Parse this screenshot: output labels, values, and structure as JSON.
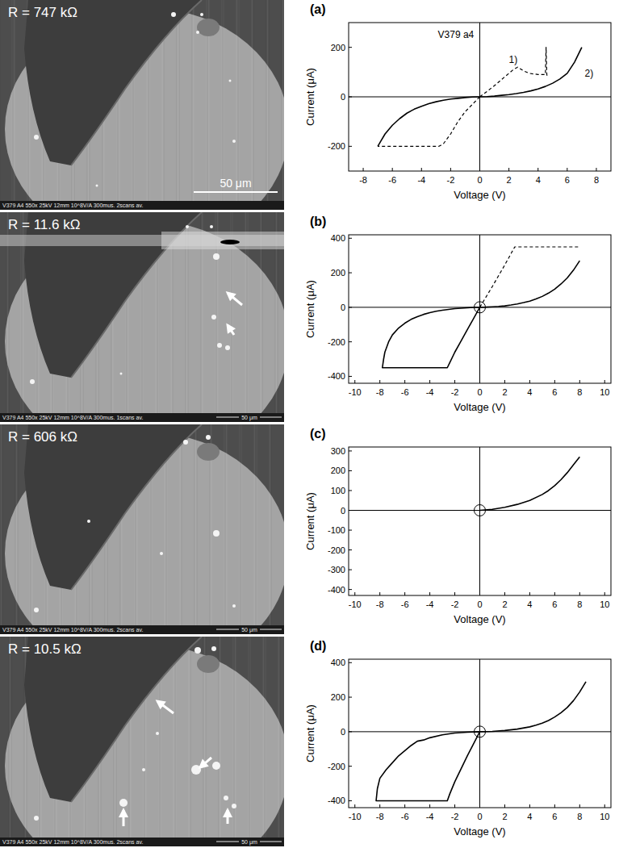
{
  "images": [
    {
      "label": "R = 747 kΩ",
      "footer": "V379 A4 550x 25kV 12mm 10^8V/A 300mus. 2scans av.",
      "scale_bar": "50 μm"
    },
    {
      "label": "R = 11.6 kΩ",
      "footer": "V379 A4 550x 25kV 12mm 10^8V/A 300mus. 1scans av.",
      "scale_bar": "50 μm"
    },
    {
      "label": "R = 606 kΩ",
      "footer": "V379 A4 550x 25kV 12mm 10^8V/A 300mus. 2scans av.",
      "scale_bar": "50 μm"
    },
    {
      "label": "R = 10.5 kΩ",
      "footer": "V379 A4 550x 25kV 12mm 10^8V/A 300mus. 2scans av.",
      "scale_bar": "50 μm"
    }
  ],
  "chart_data": [
    {
      "type": "line",
      "title": "(a)",
      "x_label": "Voltage (V)",
      "y_label": "Current (μA)",
      "xlim": [
        -9,
        9
      ],
      "xticks": [
        -8,
        -6,
        -4,
        -2,
        0,
        2,
        4,
        6,
        8
      ],
      "ylim": [
        -300,
        300
      ],
      "yticks": [
        -200,
        0,
        200
      ],
      "grid": false,
      "annotations": [
        {
          "text": "V379 a4",
          "x": -0.4,
          "y": 250
        },
        {
          "text": "1)",
          "x": 2.0,
          "y": 150
        },
        {
          "text": "2)",
          "x": 7.2,
          "y": 95
        }
      ],
      "series": [
        {
          "line_style": "dashed",
          "x": [
            0,
            0.5,
            1,
            1.5,
            2,
            2.3,
            2.6,
            3.0,
            3.4,
            4.0,
            4.5,
            4.55,
            4.6,
            4.65,
            null,
            0,
            -0.5,
            -1,
            -1.5,
            -2,
            -2.5,
            -2.8,
            -4,
            -5,
            -6,
            -7
          ],
          "values": [
            0,
            22,
            45,
            70,
            95,
            110,
            120,
            105,
            95,
            90,
            90,
            200,
            90,
            80,
            null,
            0,
            -30,
            -60,
            -100,
            -150,
            -190,
            -200,
            -200,
            -200,
            -200,
            -200
          ]
        },
        {
          "line_style": "solid",
          "x": [
            -7,
            -6.8,
            -6.5,
            -6,
            -5.5,
            -5,
            -4.5,
            -4,
            -3.5,
            -3,
            -2.5,
            -2,
            -1.5,
            -1,
            -0.5,
            0,
            0.5,
            1,
            1.5,
            2,
            2.5,
            3,
            3.5,
            4,
            4.5,
            5,
            5.5,
            6,
            6.5,
            7
          ],
          "values": [
            -200,
            -180,
            -150,
            -115,
            -88,
            -66,
            -50,
            -38,
            -28,
            -20,
            -14,
            -9,
            -6,
            -3,
            -1,
            0,
            1,
            3,
            6,
            9,
            13,
            18,
            24,
            32,
            42,
            55,
            72,
            95,
            140,
            200
          ]
        }
      ]
    },
    {
      "type": "line",
      "title": "(b)",
      "x_label": "Voltage (V)",
      "y_label": "Current (μA)",
      "xlim": [
        -10.5,
        10.5
      ],
      "xticks": [
        -10,
        -8,
        -6,
        -4,
        -2,
        0,
        2,
        4,
        6,
        8,
        10
      ],
      "ylim": [
        -440,
        420
      ],
      "yticks": [
        -400,
        -200,
        0,
        200,
        400
      ],
      "grid": false,
      "highlights": [
        {
          "x": 0,
          "y": 0
        }
      ],
      "series": [
        {
          "line_style": "dashed",
          "x": [
            0,
            1,
            2,
            2.8,
            4,
            6,
            8
          ],
          "values": [
            0,
            120,
            245,
            350,
            350,
            350,
            350
          ]
        },
        {
          "line_style": "solid",
          "x": [
            8,
            7.5,
            7,
            6.5,
            6,
            5.5,
            5,
            4.5,
            4,
            3.5,
            3,
            2.5,
            2,
            1.5,
            1,
            0.5,
            0,
            -0.5,
            -1,
            -1.5,
            -2,
            -2.5,
            -3,
            -3.5,
            -4,
            -4.5,
            -5,
            -5.5,
            -6,
            -6.5,
            -7,
            -7.3,
            -7.6,
            -7.7,
            -7.8,
            -7,
            -6,
            -5,
            -4,
            -3,
            -2.6,
            -2.4,
            -2,
            -1.5,
            -1,
            -0.5,
            0
          ],
          "values": [
            270,
            215,
            170,
            135,
            105,
            82,
            63,
            48,
            36,
            27,
            19,
            13,
            8,
            5,
            3,
            1,
            0,
            -1,
            -3,
            -5,
            -8,
            -12,
            -17,
            -23,
            -31,
            -41,
            -54,
            -70,
            -92,
            -120,
            -160,
            -200,
            -260,
            -300,
            -350,
            -350,
            -350,
            -350,
            -350,
            -350,
            -350,
            -320,
            -260,
            -195,
            -130,
            -65,
            0
          ]
        }
      ]
    },
    {
      "type": "line",
      "title": "(c)",
      "x_label": "Voltage (V)",
      "y_label": "Current (μA)",
      "xlim": [
        -10.5,
        10.5
      ],
      "xticks": [
        -10,
        -8,
        -6,
        -4,
        -2,
        0,
        2,
        4,
        6,
        8,
        10
      ],
      "ylim": [
        -430,
        320
      ],
      "yticks": [
        -400,
        -300,
        -200,
        -100,
        0,
        100,
        200,
        300
      ],
      "grid": false,
      "highlights": [
        {
          "x": 0,
          "y": 0
        }
      ],
      "series": [
        {
          "line_style": "solid",
          "x": [
            0,
            1,
            2,
            3,
            4,
            5,
            5.5,
            6,
            6.5,
            7,
            7.5,
            8
          ],
          "values": [
            0,
            5,
            15,
            30,
            50,
            80,
            100,
            125,
            155,
            190,
            230,
            270
          ]
        }
      ]
    },
    {
      "type": "line",
      "title": "(d)",
      "x_label": "Voltage (V)",
      "y_label": "Current (μA)",
      "xlim": [
        -10.5,
        10.5
      ],
      "xticks": [
        -10,
        -8,
        -6,
        -4,
        -2,
        0,
        2,
        4,
        6,
        8,
        10
      ],
      "ylim": [
        -440,
        420
      ],
      "yticks": [
        -400,
        -200,
        0,
        200,
        400
      ],
      "grid": false,
      "highlights": [
        {
          "x": 0,
          "y": 0
        }
      ],
      "series": [
        {
          "line_style": "solid",
          "x": [
            8.5,
            8,
            7.5,
            7,
            6.5,
            6,
            5.5,
            5,
            4.5,
            4,
            3,
            2,
            1,
            0,
            -1,
            -2,
            -3,
            -4,
            -4.5,
            -5,
            -5.5,
            -6,
            -6.5,
            -7,
            -7.5,
            -8,
            -8.2,
            -8.3,
            -7,
            -6,
            -5,
            -4,
            -3,
            -2.6,
            -2.4,
            -2,
            -1.5,
            -1,
            -0.5,
            0
          ],
          "values": [
            290,
            230,
            180,
            140,
            110,
            85,
            65,
            50,
            38,
            28,
            15,
            7,
            2,
            0,
            -3,
            -8,
            -18,
            -35,
            -48,
            -55,
            -80,
            -110,
            -140,
            -180,
            -220,
            -270,
            -330,
            -400,
            -400,
            -400,
            -400,
            -400,
            -400,
            -400,
            -360,
            -290,
            -215,
            -140,
            -70,
            0
          ]
        }
      ]
    }
  ]
}
